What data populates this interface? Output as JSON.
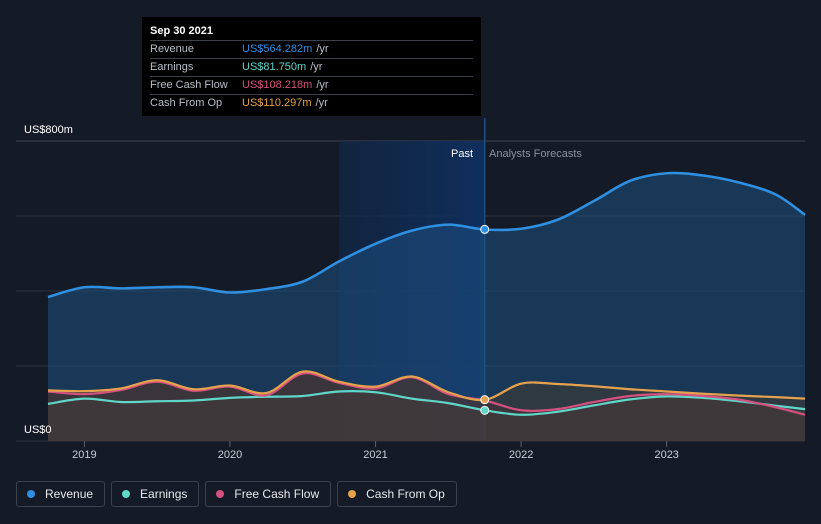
{
  "chart_data": {
    "type": "area",
    "yaxis_top_label": "US$800m",
    "yaxis_bottom_label": "US$0",
    "ylim": [
      0,
      800
    ],
    "xlim": [
      2018.3,
      2023.95
    ],
    "x_ticks": [
      {
        "value": 2019,
        "label": "2019"
      },
      {
        "value": 2020,
        "label": "2020"
      },
      {
        "value": 2021,
        "label": "2021"
      },
      {
        "value": 2022,
        "label": "2022"
      },
      {
        "value": 2023,
        "label": "2023"
      }
    ],
    "past_label": "Past",
    "forecast_label": "Analysts Forecasts",
    "divider_x": 2021.75,
    "highlight_start_x": 2020.75,
    "grid": true,
    "series": [
      {
        "name": "Revenue",
        "color": "#2f8fe0",
        "x": [
          2018.75,
          2019.0,
          2019.25,
          2019.5,
          2019.75,
          2020.0,
          2020.25,
          2020.5,
          2020.75,
          2021.0,
          2021.25,
          2021.5,
          2021.75,
          2022.0,
          2022.25,
          2022.5,
          2022.75,
          2023.0,
          2023.25,
          2023.5,
          2023.75,
          2023.95
        ],
        "values": [
          384,
          410,
          407,
          410,
          410,
          396,
          405,
          425,
          479,
          526,
          561,
          577,
          564,
          566,
          590,
          640,
          694,
          714,
          708,
          689,
          657,
          603
        ]
      },
      {
        "name": "Earnings",
        "color": "#5fd6c8",
        "x": [
          2018.75,
          2019.0,
          2019.25,
          2019.5,
          2019.75,
          2020.0,
          2020.25,
          2020.5,
          2020.75,
          2021.0,
          2021.25,
          2021.5,
          2021.75,
          2022.0,
          2022.25,
          2022.5,
          2022.75,
          2023.0,
          2023.25,
          2023.5,
          2023.75,
          2023.95
        ],
        "values": [
          99,
          113,
          104,
          106,
          108,
          115,
          118,
          120,
          132,
          130,
          113,
          101,
          82,
          70,
          78,
          95,
          111,
          119,
          115,
          106,
          94,
          85
        ]
      },
      {
        "name": "Free Cash Flow",
        "color": "#d4507e",
        "x": [
          2018.75,
          2019.0,
          2019.25,
          2019.5,
          2019.75,
          2020.0,
          2020.25,
          2020.5,
          2020.75,
          2021.0,
          2021.25,
          2021.5,
          2021.75,
          2022.0,
          2022.25,
          2022.5,
          2022.75,
          2023.0,
          2023.25,
          2023.5,
          2023.75,
          2023.95
        ],
        "values": [
          132,
          125,
          136,
          158,
          134,
          145,
          122,
          180,
          155,
          140,
          170,
          125,
          108,
          82,
          85,
          104,
          120,
          125,
          120,
          110,
          90,
          70
        ]
      },
      {
        "name": "Cash From Op",
        "color": "#e5a24e",
        "x": [
          2018.75,
          2019.0,
          2019.25,
          2019.5,
          2019.75,
          2020.0,
          2020.25,
          2020.5,
          2020.75,
          2021.0,
          2021.25,
          2021.5,
          2021.75,
          2022.0,
          2022.25,
          2022.5,
          2022.75,
          2023.0,
          2023.25,
          2023.5,
          2023.75,
          2023.95
        ],
        "values": [
          135,
          133,
          140,
          162,
          138,
          148,
          128,
          185,
          158,
          145,
          172,
          130,
          110,
          153,
          152,
          146,
          138,
          132,
          126,
          121,
          117,
          113
        ]
      }
    ]
  },
  "tooltip": {
    "date": "Sep 30 2021",
    "rows": [
      {
        "label": "Revenue",
        "value": "US$564.282m",
        "unit": "/yr",
        "color": "#2f8fe0"
      },
      {
        "label": "Earnings",
        "value": "US$81.750m",
        "unit": "/yr",
        "color": "#5fd6c8"
      },
      {
        "label": "Free Cash Flow",
        "value": "US$108.218m",
        "unit": "/yr",
        "color": "#d4507e"
      },
      {
        "label": "Cash From Op",
        "value": "US$110.297m",
        "unit": "/yr",
        "color": "#e5a24e"
      }
    ]
  },
  "legend": [
    {
      "label": "Revenue",
      "color": "#2f8fe0"
    },
    {
      "label": "Earnings",
      "color": "#5fd6c8"
    },
    {
      "label": "Free Cash Flow",
      "color": "#d4507e"
    },
    {
      "label": "Cash From Op",
      "color": "#e5a24e"
    }
  ]
}
